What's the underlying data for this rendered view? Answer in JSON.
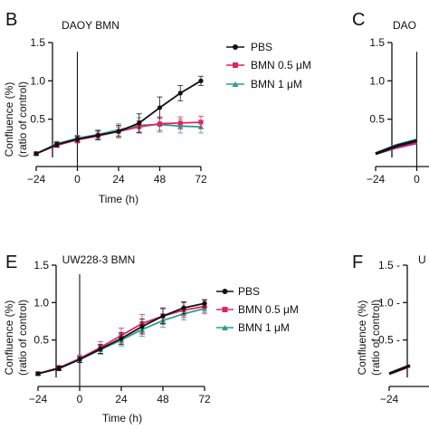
{
  "chart_data": [
    {
      "type": "line",
      "panel": "B",
      "title": "DAOY BMN",
      "xlabel": "Time (h)",
      "ylabel": [
        "Confluence (%)",
        "(ratio of control)"
      ],
      "xticks": [
        -24,
        0,
        24,
        48,
        72
      ],
      "yticks": [
        0.5,
        1.0,
        1.5
      ],
      "ytick_labels": [
        "0.5",
        "1.0",
        "1.5"
      ],
      "xlim": [
        -24,
        72
      ],
      "ylim": [
        0,
        1.5
      ],
      "legend_position": "right",
      "series": [
        {
          "name": "PBS",
          "color": "#111111",
          "marker": "circle",
          "x": [
            -24,
            -12,
            0,
            12,
            24,
            36,
            48,
            60,
            72
          ],
          "y": [
            0.05,
            0.17,
            0.24,
            0.29,
            0.34,
            0.45,
            0.65,
            0.84,
            1.0
          ],
          "err": [
            0.02,
            0.03,
            0.04,
            0.06,
            0.08,
            0.12,
            0.14,
            0.1,
            0.06
          ]
        },
        {
          "name": "BMN 0.5 μM",
          "color": "#e0245e",
          "marker": "square",
          "x": [
            -24,
            -12,
            0,
            12,
            24,
            36,
            48,
            60,
            72
          ],
          "y": [
            0.05,
            0.16,
            0.23,
            0.28,
            0.34,
            0.4,
            0.44,
            0.45,
            0.46
          ],
          "err": [
            0.02,
            0.03,
            0.04,
            0.05,
            0.06,
            0.08,
            0.09,
            0.08,
            0.08
          ]
        },
        {
          "name": "BMN 1 μM",
          "color": "#2a9d8f",
          "marker": "triangle",
          "x": [
            -24,
            -12,
            0,
            12,
            24,
            36,
            48,
            60,
            72
          ],
          "y": [
            0.05,
            0.18,
            0.25,
            0.3,
            0.36,
            0.42,
            0.43,
            0.41,
            0.4
          ],
          "err": [
            0.02,
            0.03,
            0.04,
            0.06,
            0.08,
            0.1,
            0.1,
            0.09,
            0.08
          ]
        }
      ]
    },
    {
      "type": "line",
      "panel": "C",
      "title": "DAO",
      "xlabel": "",
      "ylabel": [],
      "xticks": [
        -24,
        0
      ],
      "yticks": [
        0.5,
        1.0,
        1.5
      ],
      "ytick_labels": [
        "0.5",
        "1.0",
        "1.5"
      ],
      "xlim": [
        -24,
        72
      ],
      "ylim": [
        0,
        1.5
      ],
      "series": [
        {
          "color": "#111111",
          "x": [
            -24,
            -12,
            0
          ],
          "y": [
            0.05,
            0.15,
            0.22
          ]
        },
        {
          "color": "#e0245e",
          "x": [
            -24,
            -12,
            0
          ],
          "y": [
            0.05,
            0.14,
            0.2
          ]
        },
        {
          "color": "#2a9d8f",
          "x": [
            -24,
            -12,
            0
          ],
          "y": [
            0.05,
            0.16,
            0.23
          ]
        },
        {
          "color": "#8a2be2",
          "x": [
            -24,
            -12,
            0
          ],
          "y": [
            0.05,
            0.13,
            0.19
          ]
        }
      ]
    },
    {
      "type": "line",
      "panel": "E",
      "title": "UW228-3 BMN",
      "xlabel": "Time (h)",
      "ylabel": [
        "Confluence (%)",
        "(ratio of control)"
      ],
      "xticks": [
        -24,
        0,
        24,
        48,
        72
      ],
      "yticks": [
        0.5,
        1.0,
        1.5
      ],
      "ytick_labels": [
        "0.5",
        "1.0",
        "1.5"
      ],
      "xlim": [
        -24,
        72
      ],
      "ylim": [
        0,
        1.5
      ],
      "legend_position": "right",
      "series": [
        {
          "name": "PBS",
          "color": "#111111",
          "marker": "circle",
          "x": [
            -24,
            -12,
            0,
            12,
            24,
            36,
            48,
            60,
            72
          ],
          "y": [
            0.05,
            0.12,
            0.24,
            0.38,
            0.52,
            0.68,
            0.82,
            0.93,
            0.99
          ],
          "err": [
            0.02,
            0.03,
            0.04,
            0.06,
            0.08,
            0.1,
            0.1,
            0.08,
            0.05
          ]
        },
        {
          "name": "BMN 0.5 μM",
          "color": "#e0245e",
          "marker": "square",
          "x": [
            -24,
            -12,
            0,
            12,
            24,
            36,
            48,
            60,
            72
          ],
          "y": [
            0.05,
            0.13,
            0.25,
            0.4,
            0.56,
            0.72,
            0.82,
            0.9,
            0.95
          ],
          "err": [
            0.02,
            0.03,
            0.05,
            0.08,
            0.1,
            0.12,
            0.11,
            0.1,
            0.08
          ]
        },
        {
          "name": "BMN 1 μM",
          "color": "#2a9d8f",
          "marker": "triangle",
          "x": [
            -24,
            -12,
            0,
            12,
            24,
            36,
            48,
            60,
            72
          ],
          "y": [
            0.05,
            0.12,
            0.24,
            0.37,
            0.5,
            0.64,
            0.76,
            0.85,
            0.92
          ],
          "err": [
            0.02,
            0.03,
            0.04,
            0.06,
            0.08,
            0.09,
            0.09,
            0.08,
            0.07
          ]
        }
      ]
    },
    {
      "type": "line",
      "panel": "F",
      "title": "U",
      "xlabel": "",
      "ylabel": [
        "Confluence (%)",
        "(ratio of control)"
      ],
      "xticks": [
        -24
      ],
      "yticks": [
        0.5,
        1.0,
        1.5
      ],
      "ytick_labels": [
        "0.5 -",
        "1.0 -",
        "1.5 -"
      ],
      "xlim": [
        -24,
        72
      ],
      "ylim": [
        0,
        1.5
      ],
      "series": [
        {
          "color": "#111111",
          "x": [
            -24,
            -12
          ],
          "y": [
            0.05,
            0.16
          ]
        },
        {
          "color": "#e0245e",
          "x": [
            -24,
            -12
          ],
          "y": [
            0.05,
            0.15
          ]
        }
      ]
    }
  ]
}
